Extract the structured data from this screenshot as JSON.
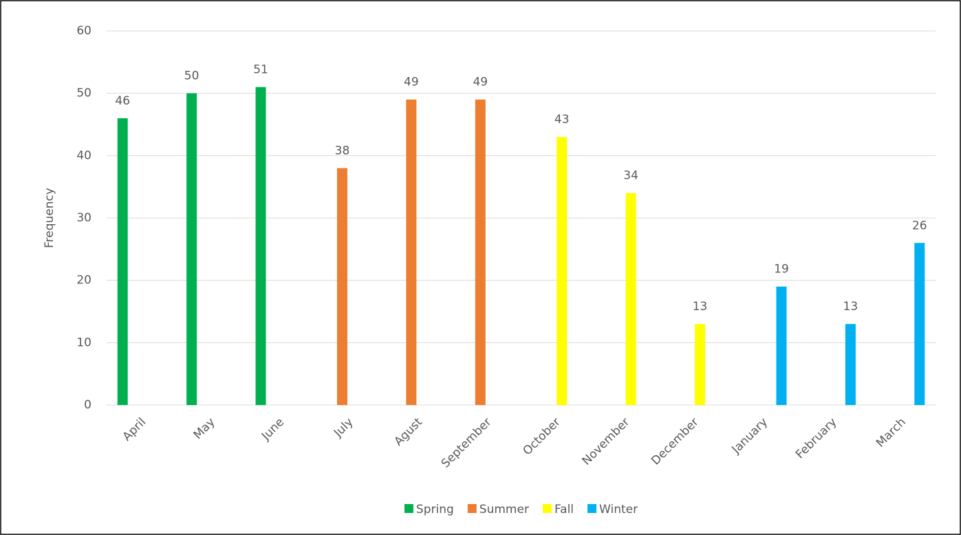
{
  "chart_data": {
    "type": "bar",
    "y_label": "Frequency",
    "categories": [
      "April",
      "May",
      "June",
      "July",
      "Agust",
      "September",
      "October",
      "November",
      "December",
      "January",
      "February",
      "March"
    ],
    "series": [
      {
        "name": "Spring",
        "color": "#00b050",
        "values": [
          46,
          50,
          51,
          null,
          null,
          null,
          null,
          null,
          null,
          null,
          null,
          null
        ]
      },
      {
        "name": "Summer",
        "color": "#ed7d31",
        "values": [
          null,
          null,
          null,
          38,
          49,
          49,
          null,
          null,
          null,
          null,
          null,
          null
        ]
      },
      {
        "name": "Fall",
        "color": "#ffff00",
        "values": [
          null,
          null,
          null,
          null,
          null,
          null,
          43,
          34,
          13,
          null,
          null,
          null
        ]
      },
      {
        "name": "Winter",
        "color": "#00b0f0",
        "values": [
          null,
          null,
          null,
          null,
          null,
          null,
          null,
          null,
          null,
          19,
          13,
          26
        ]
      }
    ],
    "ylim": [
      0,
      60
    ],
    "yticks": [
      0,
      10,
      20,
      30,
      40,
      50,
      60
    ],
    "grid": true,
    "legend": "bottom",
    "data_labels": true
  }
}
